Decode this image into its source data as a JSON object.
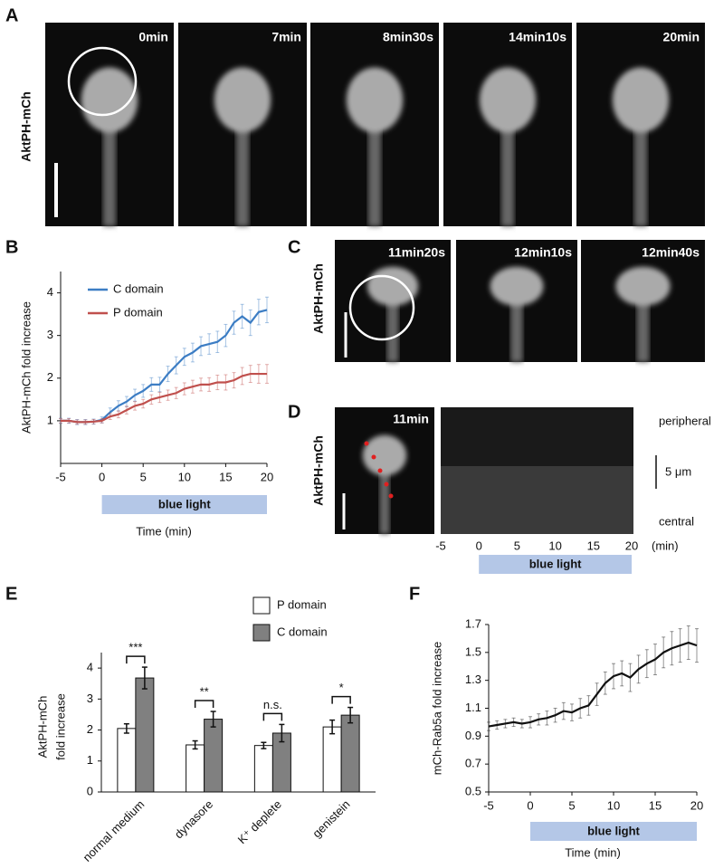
{
  "panels": {
    "A": {
      "letter": "A",
      "label": "AktPH-mCh",
      "frames": [
        "0min",
        "7min",
        "8min30s",
        "14min10s",
        "20min"
      ]
    },
    "C": {
      "letter": "C",
      "label": "AktPH-mCh",
      "frames": [
        "11min20s",
        "12min10s",
        "12min40s"
      ]
    },
    "D": {
      "letter": "D",
      "label": "AktPH-mCh",
      "frame": "11min",
      "top_label": "peripheral",
      "bottom_label": "central",
      "scale": "5 μm",
      "xlim": [
        -5,
        20
      ],
      "xticks": [
        -5,
        0,
        5,
        10,
        15,
        20
      ],
      "x_unit": "(min)",
      "light_on": [
        0,
        20
      ],
      "bar_label": "blue light"
    }
  },
  "chart_data": [
    {
      "type": "line",
      "letter": "B",
      "ylabel": "AktPH-mCh fold increase",
      "xlabel": "Time (min)",
      "bar_label": "blue light",
      "light_on": [
        0,
        20
      ],
      "xlim": [
        -5,
        20
      ],
      "xticks": [
        -5,
        0,
        5,
        10,
        15,
        20
      ],
      "ylim": [
        0,
        4.5
      ],
      "yticks": [
        1,
        2,
        3,
        4
      ],
      "legend": "upper-left",
      "x": [
        -5,
        -4,
        -3,
        -2,
        -1,
        0,
        1,
        2,
        3,
        4,
        5,
        6,
        7,
        8,
        9,
        10,
        11,
        12,
        13,
        14,
        15,
        16,
        17,
        18,
        19,
        20
      ],
      "series": [
        {
          "name": "C domain",
          "color": "#3c7dc4",
          "values": [
            1.0,
            1.0,
            0.97,
            0.97,
            0.98,
            1.02,
            1.2,
            1.35,
            1.45,
            1.6,
            1.7,
            1.85,
            1.85,
            2.1,
            2.3,
            2.5,
            2.6,
            2.75,
            2.8,
            2.85,
            3.0,
            3.3,
            3.45,
            3.3,
            3.55,
            3.6
          ],
          "errors": [
            0.06,
            0.06,
            0.06,
            0.06,
            0.06,
            0.07,
            0.1,
            0.12,
            0.12,
            0.14,
            0.15,
            0.16,
            0.17,
            0.18,
            0.2,
            0.2,
            0.22,
            0.22,
            0.24,
            0.25,
            0.26,
            0.27,
            0.28,
            0.3,
            0.3,
            0.3
          ]
        },
        {
          "name": "P domain",
          "color": "#c0504d",
          "values": [
            1.0,
            1.0,
            0.97,
            0.97,
            0.98,
            1.0,
            1.1,
            1.15,
            1.25,
            1.35,
            1.4,
            1.5,
            1.55,
            1.6,
            1.65,
            1.75,
            1.8,
            1.85,
            1.85,
            1.9,
            1.9,
            1.95,
            2.05,
            2.1,
            2.1,
            2.1
          ],
          "errors": [
            0.05,
            0.05,
            0.05,
            0.05,
            0.05,
            0.05,
            0.07,
            0.08,
            0.09,
            0.1,
            0.1,
            0.11,
            0.12,
            0.12,
            0.13,
            0.14,
            0.15,
            0.15,
            0.16,
            0.17,
            0.18,
            0.18,
            0.2,
            0.2,
            0.22,
            0.22
          ]
        }
      ]
    },
    {
      "type": "bar",
      "letter": "E",
      "ylabel": [
        "AktPH-mCh",
        "fold increase"
      ],
      "ylim": [
        0,
        4.5
      ],
      "yticks": [
        0,
        1,
        2,
        3,
        4
      ],
      "legend": "upper-right",
      "categories": [
        "normal medium",
        "dynasore",
        "K⁺ deplete",
        "genistein"
      ],
      "significance": [
        "***",
        "**",
        "n.s.",
        "*"
      ],
      "series": [
        {
          "name": "P domain",
          "color": "#ffffff",
          "values": [
            2.05,
            1.52,
            1.5,
            2.1
          ],
          "errors": [
            0.15,
            0.13,
            0.1,
            0.22
          ]
        },
        {
          "name": "C domain",
          "color": "#808080",
          "values": [
            3.68,
            2.35,
            1.9,
            2.48
          ],
          "errors": [
            0.35,
            0.25,
            0.28,
            0.25
          ]
        }
      ]
    },
    {
      "type": "line",
      "letter": "F",
      "ylabel": "mCh-Rab5a fold increase",
      "xlabel": "Time (min)",
      "bar_label": "blue light",
      "light_on": [
        0,
        20
      ],
      "xlim": [
        -5,
        20
      ],
      "xticks": [
        -5,
        0,
        5,
        10,
        15,
        20
      ],
      "ylim": [
        0.5,
        1.7
      ],
      "yticks": [
        0.5,
        0.7,
        0.9,
        {
          "value": 1.1,
          "label": "1.1"
        },
        1.3,
        1.5,
        1.7
      ],
      "x": [
        -5,
        -4,
        -3,
        -2,
        -1,
        0,
        1,
        2,
        3,
        4,
        5,
        6,
        7,
        8,
        9,
        10,
        11,
        12,
        13,
        14,
        15,
        16,
        17,
        18,
        19,
        20
      ],
      "series": [
        {
          "name": "Rab5a",
          "color": "#111111",
          "values": [
            0.97,
            0.98,
            0.99,
            1.0,
            0.99,
            1.0,
            1.02,
            1.03,
            1.05,
            1.08,
            1.07,
            1.1,
            1.12,
            1.2,
            1.28,
            1.33,
            1.35,
            1.32,
            1.38,
            1.42,
            1.45,
            1.5,
            1.53,
            1.55,
            1.57,
            1.55
          ],
          "errors": [
            0.03,
            0.03,
            0.03,
            0.03,
            0.03,
            0.04,
            0.04,
            0.05,
            0.05,
            0.06,
            0.06,
            0.07,
            0.07,
            0.08,
            0.08,
            0.09,
            0.09,
            0.1,
            0.1,
            0.1,
            0.11,
            0.11,
            0.12,
            0.12,
            0.12,
            0.12
          ]
        }
      ]
    }
  ]
}
